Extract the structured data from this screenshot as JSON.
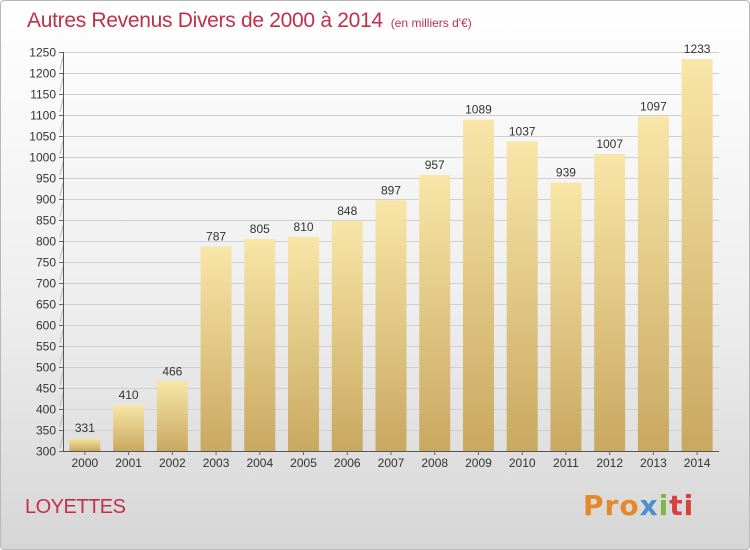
{
  "header": {
    "title": "Autres Revenus Divers de 2000 à 2014",
    "unit": "(en milliers d'€)"
  },
  "footer": {
    "commune": "LOYETTES",
    "logo": {
      "part1": "Pro",
      "part2": "x",
      "part3": "i",
      "part4": "ti"
    }
  },
  "colors": {
    "title": "#c0304a",
    "bar_light": "#f8e6a8",
    "bar_dark": "#c9a860",
    "logo_orange": "#e4892a",
    "logo_blue": "#4b8fd0",
    "logo_green": "#7ab648",
    "logo_red": "#d93f3f"
  },
  "chart_data": {
    "type": "bar",
    "title": "Autres Revenus Divers de 2000 à 2014",
    "subtitle": "(en milliers d'€)",
    "xlabel": "",
    "ylabel": "",
    "categories": [
      "2000",
      "2001",
      "2002",
      "2003",
      "2004",
      "2005",
      "2006",
      "2007",
      "2008",
      "2009",
      "2010",
      "2011",
      "2012",
      "2013",
      "2014"
    ],
    "values": [
      331,
      410,
      466,
      787,
      805,
      810,
      848,
      897,
      957,
      1089,
      1037,
      939,
      1007,
      1097,
      1233
    ],
    "ylim": [
      300,
      1250
    ],
    "yticks": [
      300,
      350,
      400,
      450,
      500,
      550,
      600,
      650,
      700,
      750,
      800,
      850,
      900,
      950,
      1000,
      1050,
      1100,
      1150,
      1200,
      1250
    ],
    "grid": true,
    "data_labels": true
  }
}
